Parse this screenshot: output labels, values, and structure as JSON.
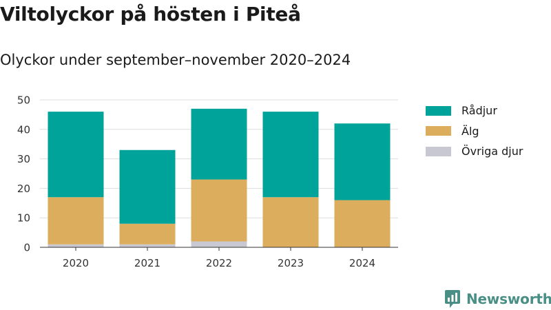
{
  "header": {
    "title": "Viltolyckor på hösten i Piteå",
    "subtitle": "Olyckor under september–november 2020–2024"
  },
  "chart_data": {
    "type": "bar",
    "stacked": true,
    "categories": [
      "2020",
      "2021",
      "2022",
      "2023",
      "2024"
    ],
    "series": [
      {
        "name": "Övriga djur",
        "color": "#c8c8d2",
        "values": [
          1,
          1,
          2,
          0,
          0
        ]
      },
      {
        "name": "Älg",
        "color": "#dbad5c",
        "values": [
          16,
          7,
          21,
          17,
          16
        ]
      },
      {
        "name": "Rådjur",
        "color": "#00a39a",
        "values": [
          29,
          25,
          24,
          29,
          26
        ]
      }
    ],
    "ylim": [
      0,
      50
    ],
    "yticks": [
      0,
      10,
      20,
      30,
      40,
      50
    ],
    "grid": true,
    "legend_position": "right"
  },
  "legend": {
    "items": [
      {
        "label": "Rådjur",
        "color": "#00a39a"
      },
      {
        "label": "Älg",
        "color": "#dbad5c"
      },
      {
        "label": "Övriga djur",
        "color": "#c8c8d2"
      }
    ]
  },
  "brand": {
    "name": "Newsworthy",
    "icon": "newsworthy-logo-icon",
    "color": "#4a8f86"
  }
}
